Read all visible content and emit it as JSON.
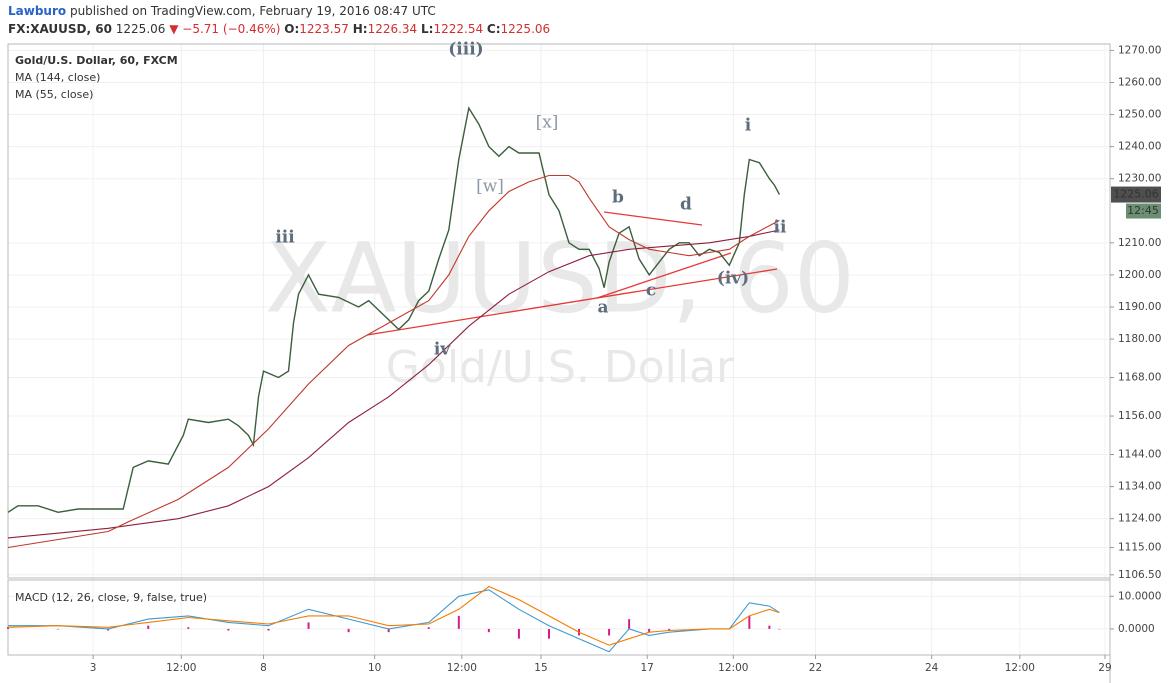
{
  "header": {
    "author": "Lawburo",
    "text": "published on TradingView.com, February 19, 2016 08:47 UTC"
  },
  "quote": {
    "symbol": "FX:XAUUSD, 60",
    "last": 1225.06,
    "change": "−5.71 (−0.46%)",
    "ohlc": [
      {
        "label": "O:",
        "value": 1223.57
      },
      {
        "label": "H:",
        "value": 1226.34
      },
      {
        "label": "L:",
        "value": 1222.54
      },
      {
        "label": "C:",
        "value": 1225.06
      }
    ]
  },
  "chart_data": [
    {
      "type": "line",
      "watermark": [
        "XAUUSD, 60",
        "Gold/U.S. Dollar"
      ],
      "xlim": [
        0,
        110
      ],
      "ylim": [
        1105.5,
        1272
      ],
      "yticks": [
        {
          "value": 1106.5,
          "label": "1106.50"
        },
        {
          "value": 1115,
          "label": "1115.00"
        },
        {
          "value": 1124,
          "label": "1124.00"
        },
        {
          "value": 1134,
          "label": "1134.00"
        },
        {
          "value": 1144,
          "label": "1144.00"
        },
        {
          "value": 1156,
          "label": "1156.00"
        },
        {
          "value": 1168,
          "label": "1168.00"
        },
        {
          "value": 1180,
          "label": "1180.00"
        },
        {
          "value": 1190,
          "label": "1190.00"
        },
        {
          "value": 1200,
          "label": "1200.00"
        },
        {
          "value": 1210,
          "label": "1210.00"
        },
        {
          "value": 1230,
          "label": "1230.00"
        },
        {
          "value": 1240,
          "label": "1240.00"
        },
        {
          "value": 1250,
          "label": "1250.00"
        },
        {
          "value": 1260,
          "label": "1260.00"
        },
        {
          "value": 1270,
          "label": "1270.00"
        }
      ],
      "last_price": 1225.06,
      "countdown": "12:45",
      "annotations": [
        "(iii)",
        "iii",
        "iv",
        "[w]",
        "[x]",
        "b",
        "d",
        "a",
        "c",
        "(iv)",
        "i",
        "ii"
      ],
      "series": [
        {
          "name": "Gold/U.S. Dollar, 60, FXCM",
          "color": "#3b5e3b",
          "x": [
            0,
            1,
            3,
            5,
            7,
            9,
            11.5,
            12.5,
            14,
            16,
            17.5,
            18,
            20,
            22,
            23,
            24,
            24.5,
            25,
            25.5,
            27,
            28,
            28.5,
            29,
            30,
            31,
            33,
            35,
            36,
            37,
            39,
            40,
            41,
            42,
            43,
            44,
            45,
            46,
            47,
            48,
            49,
            50,
            51,
            52,
            53,
            54,
            55,
            56,
            57,
            58,
            59,
            59.5,
            60,
            61,
            62,
            63,
            64,
            65,
            66,
            67,
            68,
            69,
            70,
            71,
            72,
            73,
            73.5,
            74,
            75,
            76,
            76.5,
            77
          ],
          "values": [
            1126,
            1128,
            1128,
            1126,
            1127,
            1127,
            1127,
            1140,
            1142,
            1141,
            1150,
            1155,
            1154,
            1155,
            1153,
            1150,
            1147,
            1162,
            1170,
            1168,
            1170,
            1185,
            1194,
            1200,
            1194,
            1193,
            1190,
            1192,
            1189,
            1183,
            1186,
            1192,
            1195,
            1205,
            1214,
            1236,
            1252,
            1247,
            1240,
            1237,
            1240,
            1238,
            1238,
            1238,
            1225,
            1220,
            1210,
            1208,
            1208,
            1202,
            1196,
            1204,
            1213,
            1215,
            1205,
            1200,
            1204,
            1208,
            1210,
            1210,
            1206,
            1208,
            1207,
            1203,
            1210,
            1225,
            1236,
            1235,
            1230,
            1228,
            1225.06
          ]
        },
        {
          "name": "MA (144, close)",
          "color": "#8e1f3c",
          "x": [
            0,
            10,
            17,
            22,
            26,
            30,
            34,
            38,
            42,
            46,
            50,
            54,
            58,
            62,
            66,
            70,
            74,
            77
          ],
          "values": [
            1118,
            1121,
            1124,
            1128,
            1134,
            1143,
            1154,
            1162,
            1172,
            1184,
            1194,
            1201,
            1206,
            1208,
            1209,
            1210,
            1212,
            1214
          ]
        },
        {
          "name": "MA (55, close)",
          "color": "#c0392b",
          "x": [
            0,
            10,
            12,
            17,
            22,
            26,
            30,
            34,
            38,
            42,
            44,
            46,
            48,
            50,
            52,
            54,
            56,
            57,
            58,
            60,
            62,
            64,
            66,
            68,
            70,
            72,
            74,
            77
          ],
          "values": [
            1115,
            1120,
            1123,
            1130,
            1140,
            1152,
            1166,
            1178,
            1185,
            1192,
            1200,
            1212,
            1220,
            1226,
            1229,
            1231,
            1231,
            1229,
            1224,
            1215,
            1211,
            1208,
            1207,
            1206,
            1207,
            1208,
            1212,
            1217
          ]
        }
      ]
    },
    {
      "type": "line",
      "title": "MACD (12, 26, close, 9, false, true)",
      "xlim": [
        0,
        110
      ],
      "ylim": [
        -8,
        15
      ],
      "yticks": [
        {
          "value": 0,
          "label": "0.0000"
        },
        {
          "value": 10,
          "label": "10.0000"
        }
      ],
      "xticks": [
        {
          "value": 8.5,
          "label": "3"
        },
        {
          "value": 17.3,
          "label": "12:00"
        },
        {
          "value": 25.5,
          "label": "8"
        },
        {
          "value": 36.6,
          "label": "10"
        },
        {
          "value": 45.3,
          "label": "12:00"
        },
        {
          "value": 53.2,
          "label": "15"
        },
        {
          "value": 63.8,
          "label": "17"
        },
        {
          "value": 72.4,
          "label": "12:00"
        },
        {
          "value": 80.6,
          "label": "22"
        },
        {
          "value": 92.2,
          "label": "24"
        },
        {
          "value": 101,
          "label": "12:00"
        },
        {
          "value": 109.5,
          "label": "29"
        }
      ],
      "series": [
        {
          "type": "bar",
          "color": "#d81b8c",
          "x": [
            0,
            5,
            10,
            14,
            18,
            22,
            26,
            30,
            34,
            38,
            42,
            45,
            48,
            51,
            54,
            57,
            60,
            62,
            64,
            66,
            70,
            72,
            74,
            76,
            77
          ],
          "values": [
            0.5,
            0,
            -0.5,
            1,
            0.5,
            -0.5,
            -0.5,
            2,
            -1,
            -1,
            0.5,
            4,
            -1,
            -3,
            -3,
            -2,
            -2,
            3,
            -1,
            -0.5,
            0,
            0,
            4,
            1,
            0
          ]
        },
        {
          "color": "#3d9ad1",
          "x": [
            0,
            5,
            10,
            14,
            18,
            22,
            26,
            30,
            34,
            38,
            42,
            45,
            48,
            51,
            54,
            57,
            60,
            62,
            64,
            66,
            70,
            72,
            74,
            76,
            77
          ],
          "values": [
            1,
            1,
            0,
            3,
            4,
            2,
            1,
            6,
            3,
            0,
            2,
            10,
            12,
            6,
            1,
            -3,
            -7,
            0,
            -2,
            -1,
            0,
            0,
            8,
            7,
            5
          ]
        },
        {
          "color": "#f57c00",
          "x": [
            0,
            5,
            10,
            14,
            18,
            22,
            26,
            30,
            34,
            38,
            42,
            45,
            48,
            51,
            54,
            57,
            60,
            62,
            64,
            66,
            70,
            72,
            74,
            76,
            77
          ],
          "values": [
            0.5,
            1,
            0.5,
            2,
            3.5,
            2.5,
            1.5,
            4,
            4,
            1,
            1.5,
            6,
            13,
            9,
            4,
            -1,
            -5,
            -3,
            -1,
            -0.5,
            0,
            0,
            4,
            6,
            5
          ]
        }
      ]
    }
  ]
}
